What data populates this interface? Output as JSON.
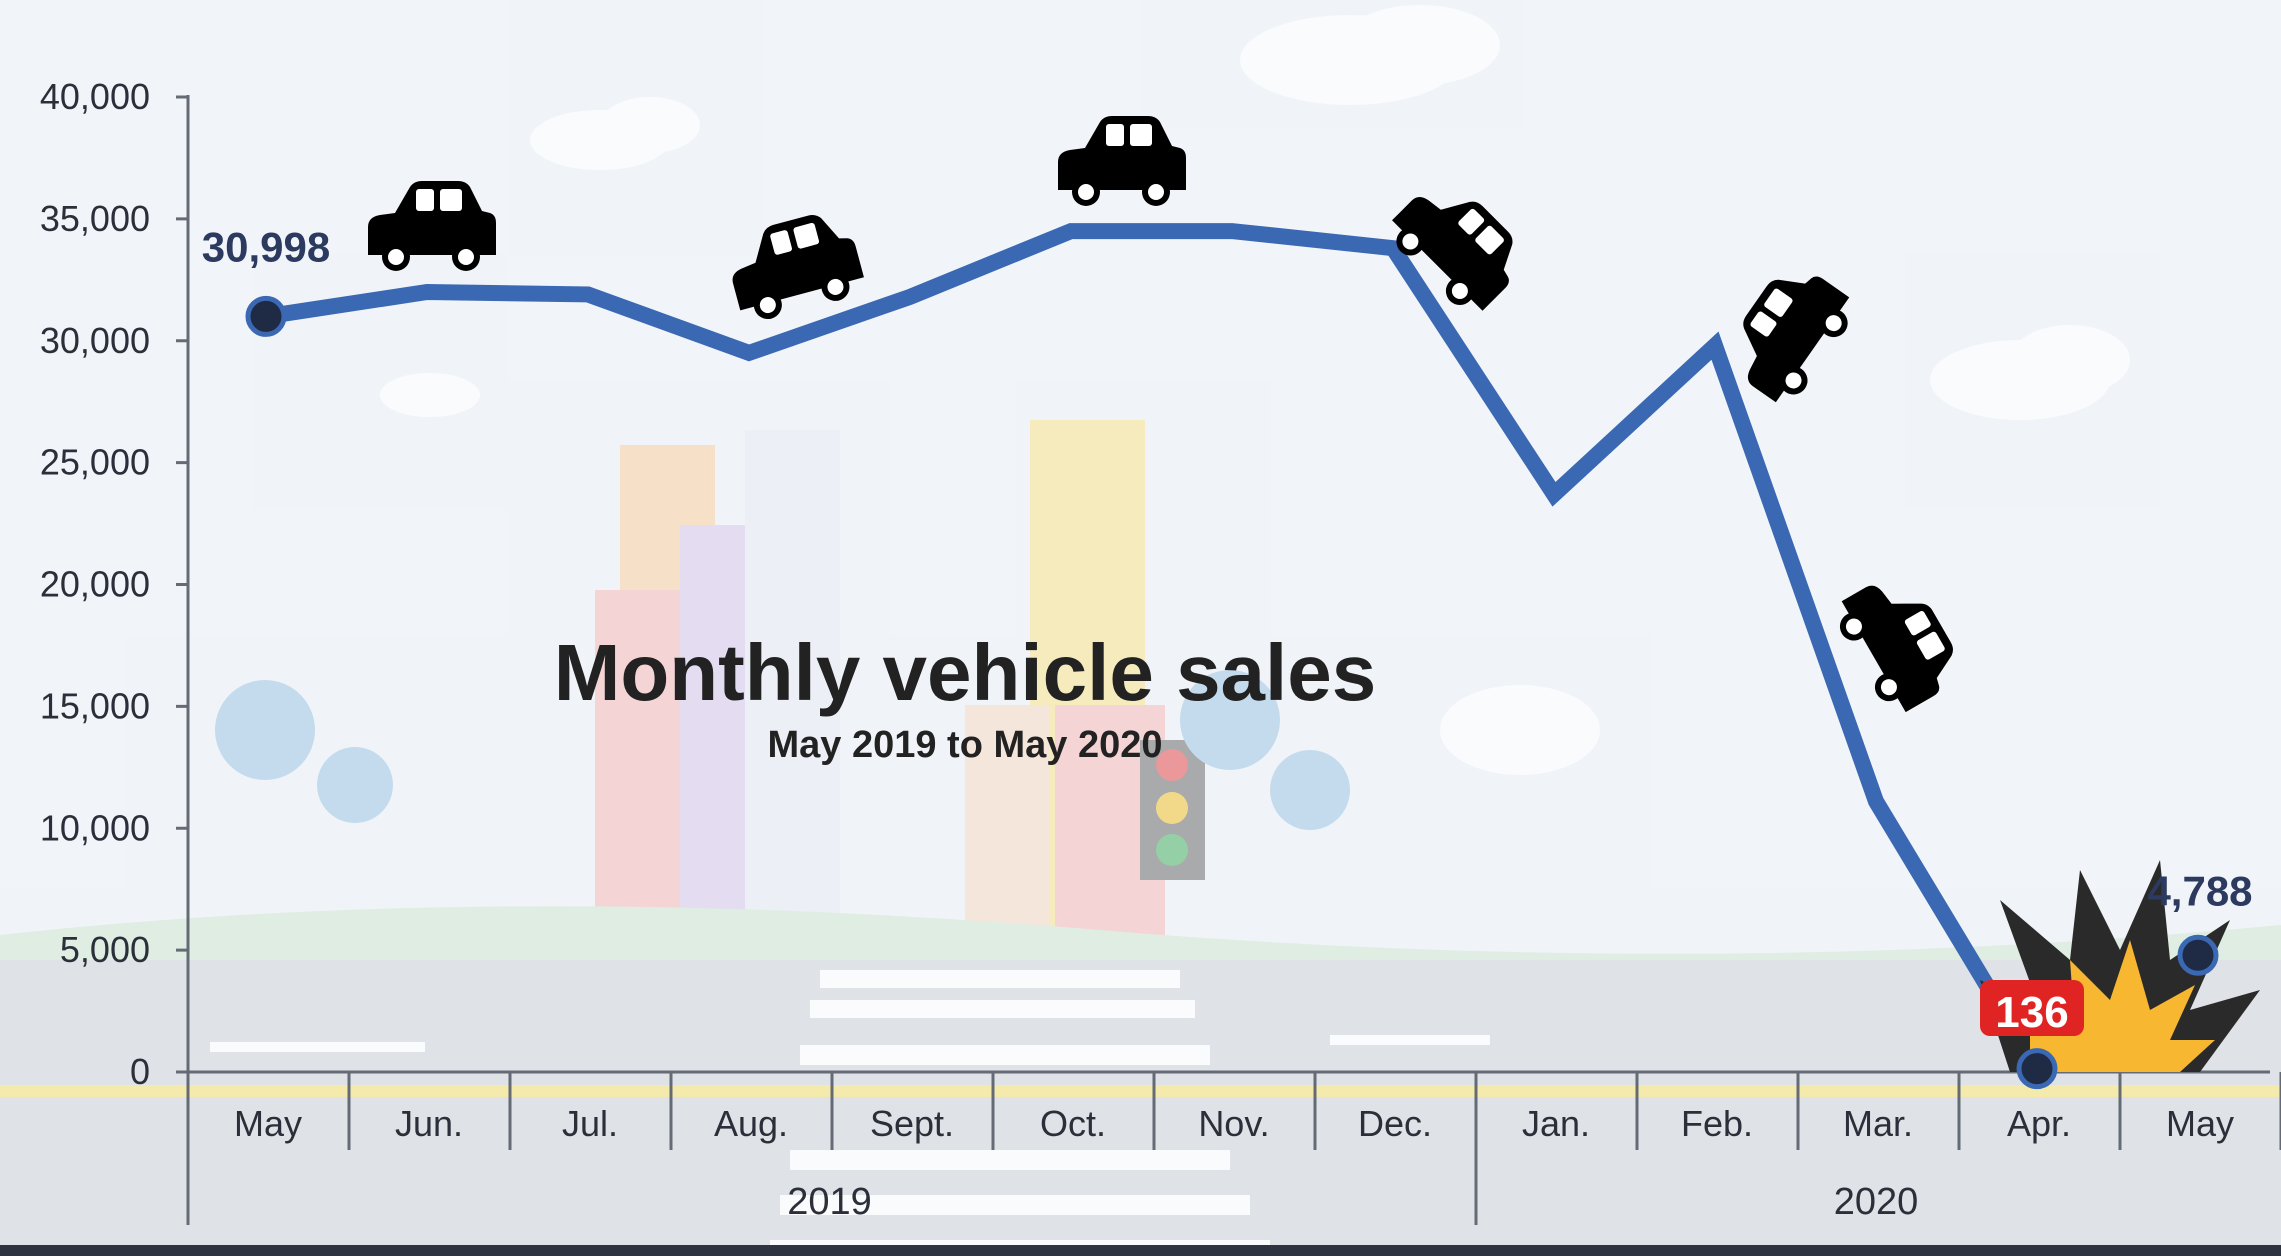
{
  "chart_data": {
    "type": "line",
    "title": "Monthly vehicle sales",
    "subtitle": "May 2019 to May 2020",
    "categories": [
      "May",
      "Jun.",
      "Jul.",
      "Aug.",
      "Sept.",
      "Oct.",
      "Nov.",
      "Dec.",
      "Jan.",
      "Feb.",
      "Mar.",
      "Apr.",
      "May"
    ],
    "year_groups": [
      {
        "label": "2019",
        "from": 0,
        "to": 7
      },
      {
        "label": "2020",
        "from": 8,
        "to": 12
      }
    ],
    "series": [
      {
        "values": [
          30998,
          32000,
          31900,
          29500,
          31800,
          34500,
          34500,
          33800,
          23700,
          29800,
          11100,
          136,
          4788
        ]
      }
    ],
    "data_labels": [
      "30,998",
      "136",
      "4,788"
    ],
    "yticks": [
      "0",
      "5,000",
      "10,000",
      "15,000",
      "20,000",
      "25,000",
      "30,000",
      "35,000",
      "40,000"
    ],
    "ylim": [
      0,
      40000
    ],
    "grid": false,
    "line_color": "#3a68b3",
    "label_color": "#2b3a5e",
    "burst_colors": [
      "#2a2a2a",
      "#f7b731"
    ],
    "icons": [
      "car-icon",
      "crash-burst-icon"
    ]
  }
}
